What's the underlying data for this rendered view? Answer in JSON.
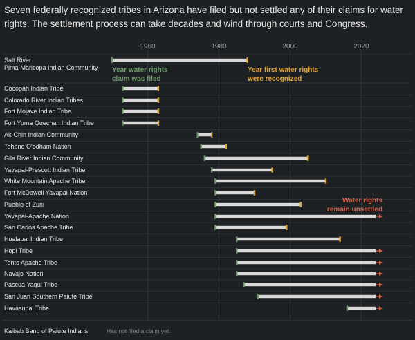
{
  "title": "Seven federally recognized tribes in Arizona have filed but not settled any of their claims for water rights. The settlement process can take decades and wind through courts and Congress.",
  "colors": {
    "filed": "#6f9b6a",
    "recognized": "#e0a236",
    "unsettled": "#d0634e",
    "bar": "#d9d9d9",
    "grid": "#3a3e42",
    "background": "#1e2124"
  },
  "annotations": {
    "filed": [
      "Year water rights",
      "claim was filed"
    ],
    "recognized": [
      "Year first water rights",
      "were recognized"
    ],
    "unsettled": [
      "Water rights",
      "remain unsettled"
    ]
  },
  "chart_data": {
    "type": "range-bar",
    "title": "Seven federally recognized tribes in Arizona have filed but not settled any of their claims for water rights. The settlement process can take decades and wind through courts and Congress.",
    "xlim": [
      1950,
      2025
    ],
    "x_ticks": [
      1960,
      1980,
      2000,
      2020
    ],
    "grid": true,
    "series": [
      {
        "name": "Year water rights claim was filed",
        "role": "filed"
      },
      {
        "name": "Year first water rights were recognized",
        "role": "recognized"
      },
      {
        "name": "Water rights remain unsettled",
        "role": "unsettled"
      }
    ],
    "rows": [
      {
        "label": "Salt River Pima-Maricopa Indian Community",
        "filed": 1950,
        "recognized": 1988
      },
      {
        "label": "Cocopah Indian Tribe",
        "filed": 1953,
        "recognized": 1963
      },
      {
        "label": "Colorado River Indian Tribes",
        "filed": 1953,
        "recognized": 1963
      },
      {
        "label": "Fort Mojave Indian Tribe",
        "filed": 1953,
        "recognized": 1963
      },
      {
        "label": "Fort Yuma Quechan Indian Tribe",
        "filed": 1953,
        "recognized": 1963
      },
      {
        "label": "Ak-Chin Indian Community",
        "filed": 1974,
        "recognized": 1978
      },
      {
        "label": "Tohono O'odham Nation",
        "filed": 1975,
        "recognized": 1982
      },
      {
        "label": "Gila River Indian Community",
        "filed": 1976,
        "recognized": 2005
      },
      {
        "label": "Yavapai-Prescott Indian Tribe",
        "filed": 1978,
        "recognized": 1995
      },
      {
        "label": "White Mountain Apache Tribe",
        "filed": 1979,
        "recognized": 2010
      },
      {
        "label": "Fort McDowell Yavapai Nation",
        "filed": 1979,
        "recognized": 1990
      },
      {
        "label": "Pueblo of Zuni",
        "filed": 1979,
        "recognized": 2003
      },
      {
        "label": "Yavapai-Apache Nation",
        "filed": 1979,
        "recognized": null,
        "unsettled": true
      },
      {
        "label": "San Carlos Apache Tribe",
        "filed": 1979,
        "recognized": 1999
      },
      {
        "label": "Hualapai Indian Tribe",
        "filed": 1985,
        "recognized": 2014
      },
      {
        "label": "Hopi Tribe",
        "filed": 1985,
        "recognized": null,
        "unsettled": true
      },
      {
        "label": "Tonto Apache Tribe",
        "filed": 1985,
        "recognized": null,
        "unsettled": true
      },
      {
        "label": "Navajo Nation",
        "filed": 1985,
        "recognized": null,
        "unsettled": true
      },
      {
        "label": "Pascua Yaqui Tribe",
        "filed": 1987,
        "recognized": null,
        "unsettled": true
      },
      {
        "label": "San Juan Southern Paiute Tribe",
        "filed": 1991,
        "recognized": null,
        "unsettled": true
      },
      {
        "label": "Havasupai Tribe",
        "filed": 2016,
        "recognized": null,
        "unsettled": true
      },
      {
        "label": "Kaibab Band of Paiute Indians",
        "filed": null,
        "recognized": null,
        "note": "Has not filed a claim yet."
      }
    ]
  }
}
